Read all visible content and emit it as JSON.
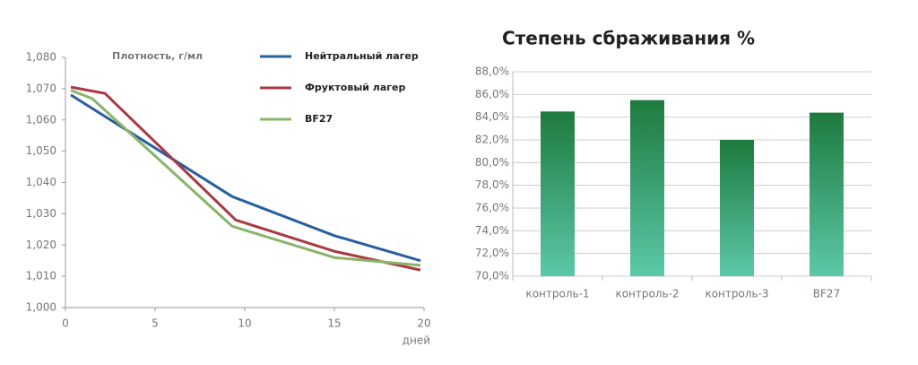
{
  "chart_data": [
    {
      "type": "line",
      "y_label": "Плотность, г/мл",
      "x_label": "дней",
      "xlim": [
        0,
        20
      ],
      "xticks": [
        0,
        5,
        10,
        15,
        20
      ],
      "ylim": [
        1.0,
        1.08
      ],
      "yticks": [
        {
          "value": 1.0,
          "label": "1,000"
        },
        {
          "value": 1.01,
          "label": "1,010"
        },
        {
          "value": 1.02,
          "label": "1,020"
        },
        {
          "value": 1.03,
          "label": "1,030"
        },
        {
          "value": 1.04,
          "label": "1,040"
        },
        {
          "value": 1.05,
          "label": "1,050"
        },
        {
          "value": 1.06,
          "label": "1,060"
        },
        {
          "value": 1.07,
          "label": "1,070"
        },
        {
          "value": 1.08,
          "label": "1,080"
        }
      ],
      "grid": false,
      "legend": "top-right",
      "series": [
        {
          "name": "Нейтральный лагер",
          "color": "#2a5fa0",
          "x": [
            0.3,
            9.3,
            15,
            19.8
          ],
          "values": [
            1.068,
            1.0355,
            1.023,
            1.015
          ]
        },
        {
          "name": "Фруктовый лагер",
          "color": "#a83a44",
          "x": [
            0.3,
            2.2,
            9.5,
            15,
            19.8
          ],
          "values": [
            1.0705,
            1.0685,
            1.028,
            1.018,
            1.012
          ]
        },
        {
          "name": "BF27",
          "color": "#8ab46a",
          "x": [
            0.3,
            1.5,
            9.3,
            15,
            19.8
          ],
          "values": [
            1.0695,
            1.0668,
            1.026,
            1.016,
            1.0135
          ]
        }
      ]
    },
    {
      "type": "bar",
      "title": "Степень сбраживания %",
      "categories": [
        "контроль-1",
        "контроль-2",
        "контроль-3",
        "BF27"
      ],
      "values": [
        84.5,
        85.5,
        82.0,
        84.4
      ],
      "color": [
        "#1e7a3e",
        "#5cc8a8"
      ],
      "ylim": [
        70,
        88
      ],
      "yticks": [
        {
          "value": 70,
          "label": "70,0%"
        },
        {
          "value": 72,
          "label": "72,0%"
        },
        {
          "value": 74,
          "label": "74,0%"
        },
        {
          "value": 76,
          "label": "76,0%"
        },
        {
          "value": 78,
          "label": "78,0%"
        },
        {
          "value": 80,
          "label": "80,0%"
        },
        {
          "value": 82,
          "label": "82,0%"
        },
        {
          "value": 84,
          "label": "84,0%"
        },
        {
          "value": 86,
          "label": "86,0%"
        },
        {
          "value": 88,
          "label": "88,0%"
        }
      ],
      "grid": true
    }
  ]
}
